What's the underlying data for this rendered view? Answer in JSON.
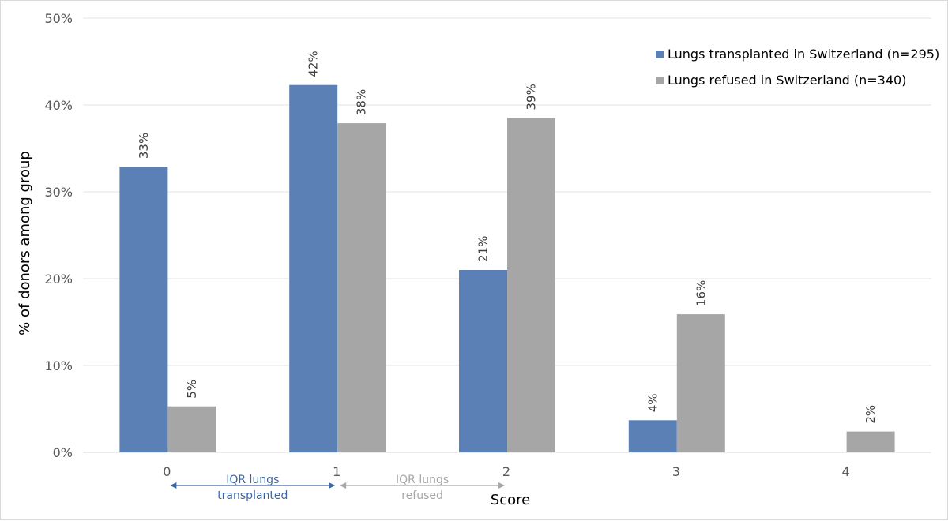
{
  "chart_data": {
    "type": "bar",
    "title": "",
    "xlabel": "Score",
    "ylabel": "% of donors among group",
    "categories": [
      "0",
      "1",
      "2",
      "3",
      "4"
    ],
    "ylim": [
      0,
      50
    ],
    "yticks": [
      "0%",
      "10%",
      "20%",
      "30%",
      "40%",
      "50%"
    ],
    "grid": true,
    "legend_position": "top-right",
    "series": [
      {
        "name": "Lungs transplanted in Switzerland (n=295)",
        "color": "#5b80b5",
        "values": [
          32.9,
          42.3,
          21.0,
          3.7,
          null
        ],
        "labels": [
          "33%",
          "42%",
          "21%",
          "4%",
          ""
        ]
      },
      {
        "name": "Lungs refused in Switzerland (n=340)",
        "color": "#a6a6a6",
        "values": [
          5.3,
          37.9,
          38.5,
          15.9,
          2.4
        ],
        "labels": [
          "5%",
          "38%",
          "39%",
          "16%",
          "2%"
        ]
      }
    ],
    "annotations": [
      {
        "line1": "IQR lungs",
        "line2": "transplanted",
        "from": "0",
        "to": "1",
        "color": "#3b64a0"
      },
      {
        "line1": "IQR lungs",
        "line2": "refused",
        "from": "1",
        "to": "2",
        "color": "#a6a6a6"
      }
    ]
  }
}
